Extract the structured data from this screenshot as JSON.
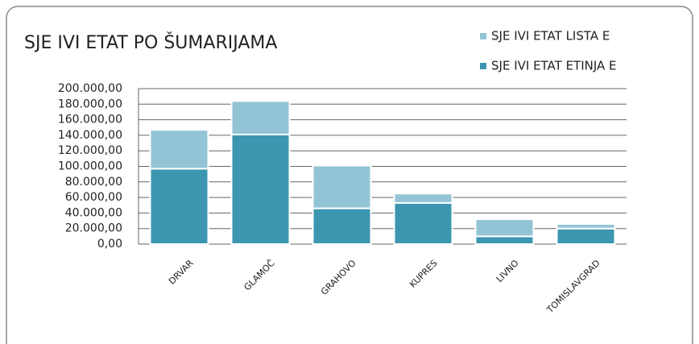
{
  "chart_data": {
    "type": "stacked_bar",
    "title": "SJE IVI ETAT PO ŠUMARIJAMA",
    "categories": [
      "DRVAR",
      "GLAMOČ",
      "GRAHOVO",
      "KUPRES",
      "LIVNO",
      "TOMISLAVGRAD"
    ],
    "series": [
      {
        "name": "SJE IVI ETAT ETINJA E",
        "color": "#3c96b0",
        "values": [
          97000,
          141000,
          46000,
          53000,
          10000,
          20000
        ]
      },
      {
        "name": "SJE IVI ETAT LISTA E",
        "color": "#93c4d6",
        "values": [
          50000,
          43000,
          55000,
          12000,
          22000,
          6000
        ]
      }
    ],
    "legend_order": [
      1,
      0
    ],
    "ylim": [
      0,
      200000
    ],
    "yticks": [
      {
        "value": 0,
        "label": "0,00"
      },
      {
        "value": 20000,
        "label": "20.000,00"
      },
      {
        "value": 40000,
        "label": "40.000,00"
      },
      {
        "value": 60000,
        "label": "60.000,00"
      },
      {
        "value": 80000,
        "label": "80.000,00"
      },
      {
        "value": 100000,
        "label": "100.000,00"
      },
      {
        "value": 120000,
        "label": "120.000,00"
      },
      {
        "value": 140000,
        "label": "140.000,00"
      },
      {
        "value": 160000,
        "label": "160.000,00"
      },
      {
        "value": 180000,
        "label": "180.000,00"
      },
      {
        "value": 200000,
        "label": "200.000,00"
      }
    ],
    "grid": true
  }
}
